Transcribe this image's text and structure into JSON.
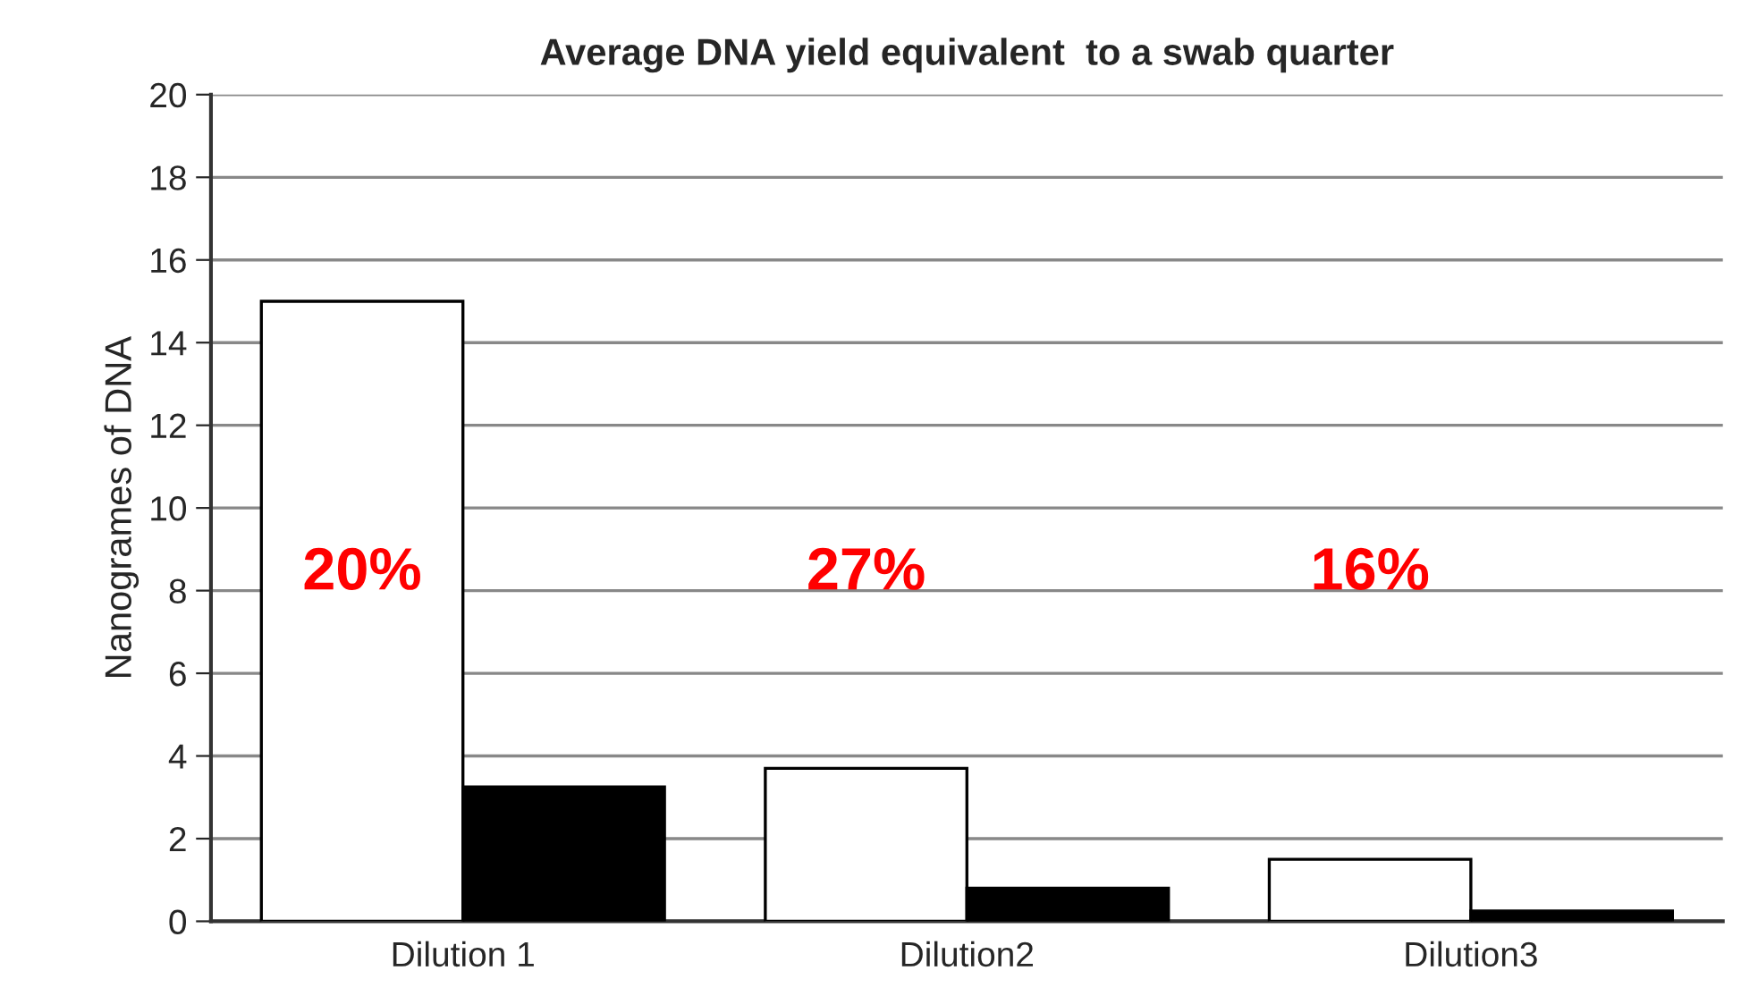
{
  "chart_data": {
    "type": "bar",
    "title": "Average DNA yield equivalent  to a swab quarter",
    "ylabel": "Nanogrames of DNA",
    "categories": [
      "Dilution 1",
      "Dilution2",
      "Dilution3"
    ],
    "series": [
      {
        "color": "#ffffff",
        "values": [
          15,
          3.7,
          1.5
        ]
      },
      {
        "color": "#000000",
        "values": [
          3.25,
          0.8,
          0.25
        ]
      }
    ],
    "ylim": [
      0,
      20
    ],
    "yticks": [
      0,
      2,
      4,
      6,
      8,
      10,
      12,
      14,
      16,
      18,
      20
    ],
    "grid": "y",
    "legend": false,
    "annotations": [
      "20%",
      "27%",
      "16%"
    ]
  }
}
